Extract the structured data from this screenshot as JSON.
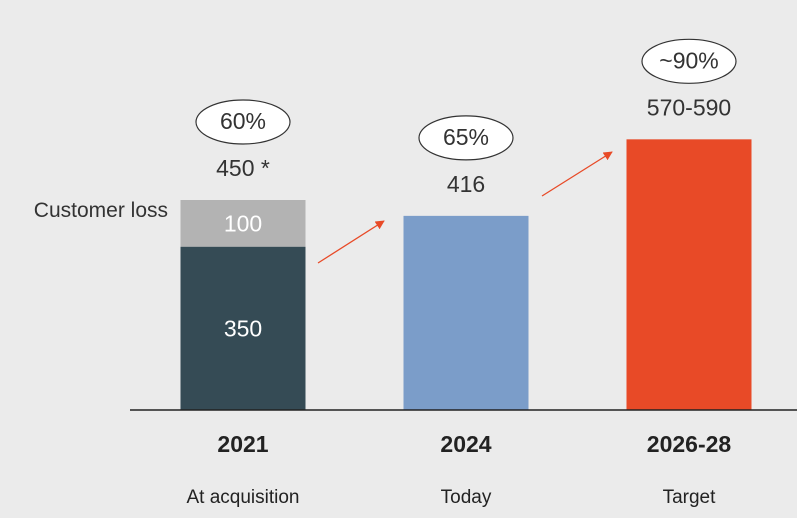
{
  "chart_data": {
    "type": "stacked-bar",
    "categories": [
      "2021",
      "2024",
      "2026-28"
    ],
    "category_subtitles": [
      "At acquisition",
      "Today",
      "Target"
    ],
    "series": [
      {
        "colors": [
          "#354b55",
          "#7b9dc9",
          "#e84a27"
        ],
        "values": [
          350,
          416,
          580
        ],
        "label_inside": [
          true,
          false,
          false
        ]
      },
      {
        "name": "Customer loss",
        "color": "#b3b3b3",
        "values": [
          100,
          null,
          null
        ]
      }
    ],
    "total_labels": [
      "450 *",
      "416",
      "570-590"
    ],
    "share_labels": [
      "60%",
      "65%",
      "~90%"
    ],
    "ylim": [
      0,
      630
    ]
  }
}
